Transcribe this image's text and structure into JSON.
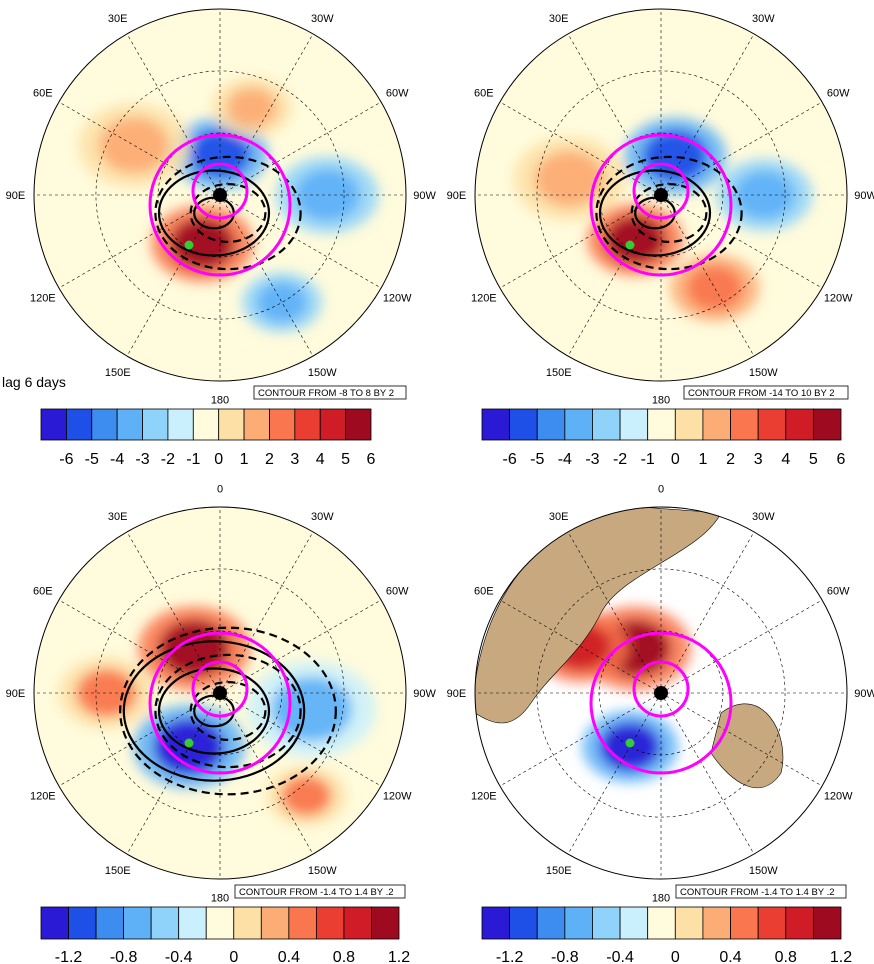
{
  "figure": {
    "title": "lag 6 days",
    "longitude_labels": [
      "0",
      "30W",
      "60W",
      "90W",
      "120W",
      "150W",
      "180",
      "150E",
      "120E",
      "90E",
      "60E",
      "30E"
    ],
    "colors": {
      "land": "#c8a87e",
      "reference_circles": "#ff00ff",
      "marker": "#33cc33",
      "contour_lines": "#000000"
    },
    "palette": [
      "#2a1ad6",
      "#1e4fe6",
      "#3d8cf0",
      "#5fb1f7",
      "#8fd3fb",
      "#c9f0fc",
      "#fffbdc",
      "#fde0a6",
      "#fcad76",
      "#f9764e",
      "#ea3e33",
      "#cf1c26",
      "#9e0a1f"
    ],
    "panels": [
      {
        "id": "top-left",
        "contour_text": "CONTOUR FROM -8 TO 8 BY 2",
        "colorbar_labels": [
          "-6",
          "-5",
          "-4",
          "-3",
          "-2",
          "-1",
          "0",
          "1",
          "2",
          "3",
          "4",
          "5",
          "6"
        ],
        "fields": [
          {
            "lon": 0,
            "lat": 70,
            "value": -5,
            "size": 30
          },
          {
            "lon": 200,
            "lat": 65,
            "value": 6,
            "size": 32
          },
          {
            "lon": 90,
            "lat": 38,
            "value": -3,
            "size": 32
          },
          {
            "lon": 300,
            "lat": 42,
            "value": 2,
            "size": 35
          },
          {
            "lon": 20,
            "lat": 45,
            "value": 2,
            "size": 25
          },
          {
            "lon": 150,
            "lat": 30,
            "value": -3,
            "size": 25
          }
        ]
      },
      {
        "id": "top-right",
        "contour_text": "CONTOUR FROM -14 TO 10 BY 2",
        "colorbar_labels": [
          "-6",
          "-5",
          "-4",
          "-3",
          "-2",
          "-1",
          "0",
          "1",
          "2",
          "3",
          "4",
          "5",
          "6"
        ],
        "fields": [
          {
            "lon": 20,
            "lat": 70,
            "value": -5,
            "size": 32
          },
          {
            "lon": 210,
            "lat": 65,
            "value": 6,
            "size": 30
          },
          {
            "lon": 150,
            "lat": 38,
            "value": 3,
            "size": 28
          },
          {
            "lon": 280,
            "lat": 45,
            "value": 2,
            "size": 35
          },
          {
            "lon": 90,
            "lat": 40,
            "value": -3,
            "size": 30
          }
        ]
      },
      {
        "id": "bottom-left",
        "contour_text": "CONTOUR FROM -1.4 TO 1.4 BY .2",
        "colorbar_labels": [
          "-1.2",
          "-0.8",
          "-0.4",
          "0",
          "0.4",
          "0.8",
          "1.2"
        ],
        "fields": [
          {
            "lon": 330,
            "lat": 65,
            "value": 1.4,
            "size": 35
          },
          {
            "lon": 210,
            "lat": 60,
            "value": -1.4,
            "size": 35
          },
          {
            "lon": 100,
            "lat": 45,
            "value": -0.6,
            "size": 40
          },
          {
            "lon": 270,
            "lat": 35,
            "value": 0.6,
            "size": 30
          },
          {
            "lon": 140,
            "lat": 25,
            "value": 0.6,
            "size": 25
          }
        ]
      },
      {
        "id": "bottom-right",
        "contour_text": "CONTOUR FROM -1.4 TO 1.4 BY .2",
        "colorbar_labels": [
          "-1.2",
          "-0.8",
          "-0.4",
          "0",
          "0.4",
          "0.8",
          "1.2"
        ],
        "fields": [
          {
            "lon": 330,
            "lat": 65,
            "value": 1.4,
            "size": 35
          },
          {
            "lon": 210,
            "lat": 60,
            "value": -1.4,
            "size": 30
          },
          {
            "lon": 300,
            "lat": 45,
            "value": 1.2,
            "size": 30
          }
        ]
      }
    ]
  }
}
